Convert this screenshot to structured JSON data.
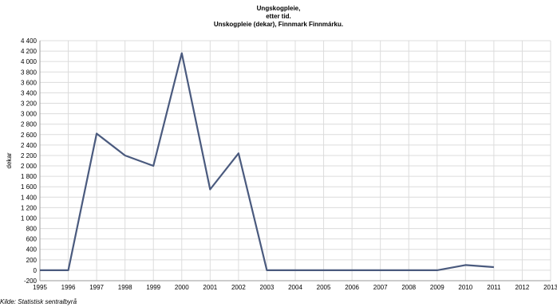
{
  "chart_data": {
    "type": "line",
    "title_lines": [
      "Ungskogpleie,",
      "etter tid.",
      "Unskogpleie (dekar), Finnmark Finnmárku."
    ],
    "ylabel": "dekar",
    "xlabel": "",
    "x": [
      "1995",
      "1996",
      "1997",
      "1998",
      "1999",
      "2000",
      "2001",
      "2002",
      "2003",
      "2004",
      "2005",
      "2006",
      "2007",
      "2008",
      "2009",
      "2010",
      "2011",
      "2012",
      "2013"
    ],
    "series": [
      {
        "values": [
          0,
          0,
          2620,
          2200,
          2000,
          4160,
          1550,
          2240,
          0,
          0,
          0,
          0,
          0,
          0,
          0,
          100,
          60,
          null,
          null
        ]
      }
    ],
    "ylim": [
      -200,
      4400
    ],
    "yticks": [
      -200,
      0,
      200,
      400,
      600,
      800,
      1000,
      1200,
      1400,
      1600,
      1800,
      2000,
      2200,
      2400,
      2600,
      2800,
      3000,
      3200,
      3400,
      3600,
      3800,
      4000,
      4200,
      4400
    ],
    "ytick_labels": [
      "-200",
      "0",
      "200",
      "400",
      "600",
      "800",
      "1 000",
      "1 200",
      "1 400",
      "1 600",
      "1 800",
      "2 000",
      "2 200",
      "2 400",
      "2 600",
      "2 800",
      "3 000",
      "3 200",
      "3 400",
      "3 600",
      "3 800",
      "4 000",
      "4 200",
      "4 400"
    ],
    "grid": true,
    "line_color": "#4a5a7e",
    "source": "Kilde: Statistisk sentralbyrå"
  }
}
